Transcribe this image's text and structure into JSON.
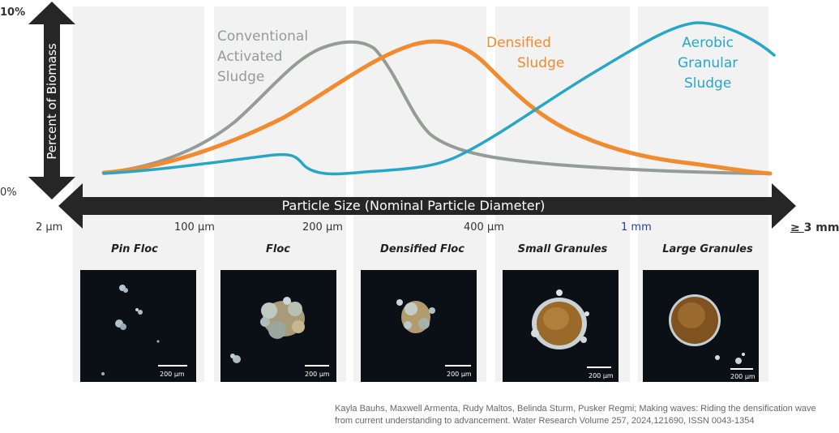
{
  "y_axis": {
    "label": "Percent of Biomass",
    "max_label": "10%",
    "min_label": "0%"
  },
  "x_axis": {
    "label": "Particle Size (Nominal Particle Diameter)",
    "ticks": [
      "2 µm",
      "100 µm",
      "200 µm",
      "400 µm",
      "1 mm",
      "3 mm"
    ],
    "last_tick_prefix": "≥ "
  },
  "curves": [
    {
      "name": "Conventional Activated Sludge",
      "lines": [
        "Conventional",
        "Activated",
        "Sludge"
      ],
      "color": "#939c96"
    },
    {
      "name": "Densified Sludge",
      "lines": [
        "Densified",
        "Sludge"
      ],
      "color": "#f28a2e"
    },
    {
      "name": "Aerobic Granular Sludge",
      "lines": [
        "Aerobic",
        "Granular",
        "Sludge"
      ],
      "color": "#27a7c7"
    }
  ],
  "stages": [
    {
      "title": "Pin Floc",
      "scale_bar": "200 µm"
    },
    {
      "title": "Floc",
      "scale_bar": "200 µm"
    },
    {
      "title": "Densified Floc",
      "scale_bar": "200 µm"
    },
    {
      "title": "Small Granules",
      "scale_bar": "200 µm"
    },
    {
      "title": "Large Granules",
      "scale_bar": "200 µm"
    }
  ],
  "citation": "Kayla Bauhs, Maxwell Armenta, Rudy Maltos, Belinda Sturm, Pusker Regmi; Making waves: Riding the densification wave from current understanding to advancement. Water Research Volume 257, 2024,121690, ISSN 0043-1354"
}
